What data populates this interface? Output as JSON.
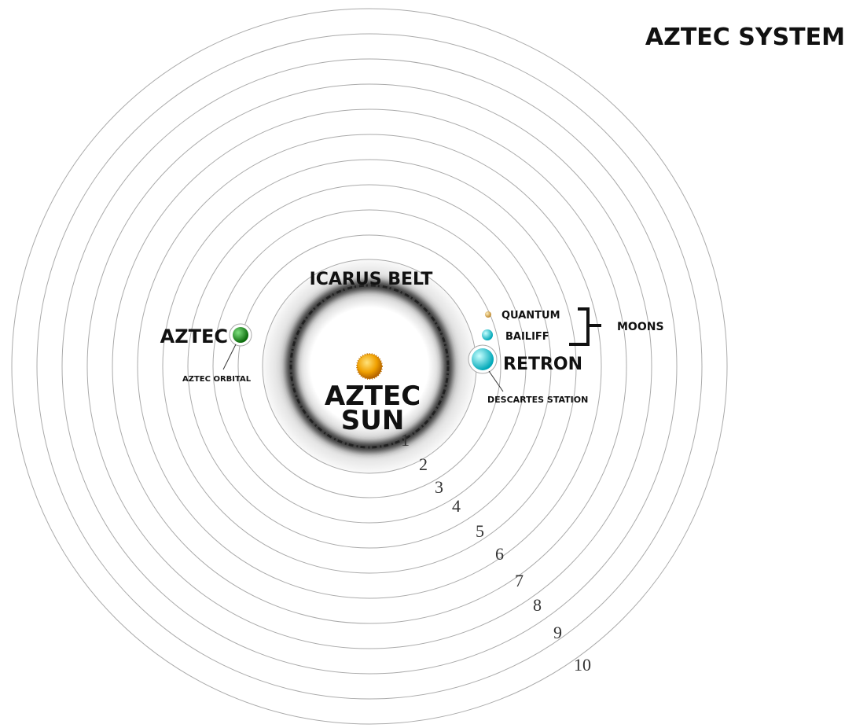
{
  "header": {
    "title": "AZTEC SYSTEM"
  },
  "belt": {
    "label": "ICARUS BELT"
  },
  "sun": {
    "label_lines": [
      "AZTEC",
      "SUN"
    ]
  },
  "planets": [
    {
      "label": "AZTEC",
      "station": "AZTEC ORBITAL"
    },
    {
      "label": "RETRON",
      "station": "DESCARTES STATION"
    }
  ],
  "moons": {
    "label": "MOONS",
    "names": [
      "QUANTUM",
      "BAILIFF"
    ]
  },
  "orbits": [
    "1",
    "2",
    "3",
    "4",
    "5",
    "6",
    "7",
    "8",
    "9",
    "10"
  ]
}
